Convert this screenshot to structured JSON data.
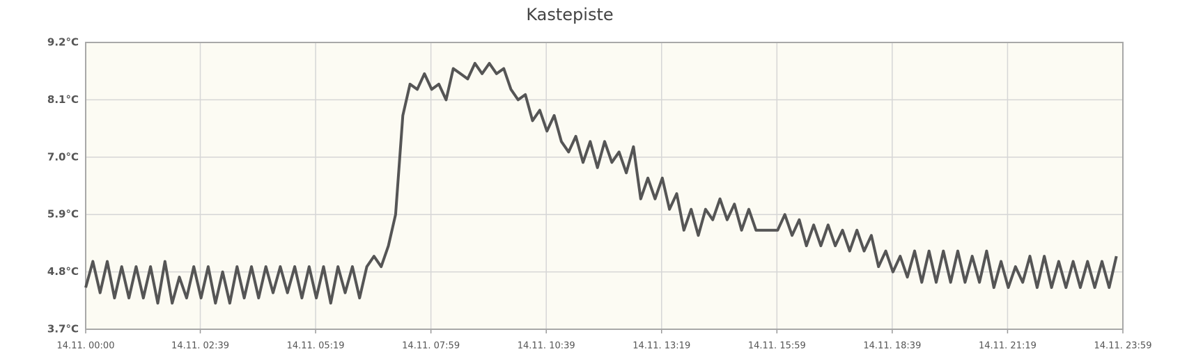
{
  "chart_data": {
    "type": "line",
    "title": "Kastepiste",
    "x": [
      0,
      10,
      20,
      30,
      40,
      50,
      60,
      70,
      80,
      90,
      100,
      110,
      120,
      130,
      140,
      150,
      160,
      170,
      180,
      190,
      200,
      210,
      220,
      230,
      240,
      250,
      260,
      270,
      280,
      290,
      300,
      310,
      320,
      330,
      340,
      350,
      360,
      370,
      380,
      390,
      400,
      410,
      420,
      430,
      440,
      450,
      460,
      470,
      480,
      490,
      500,
      510,
      520,
      530,
      540,
      550,
      560,
      570,
      580,
      590,
      600,
      610,
      620,
      630,
      640,
      650,
      660,
      670,
      680,
      690,
      700,
      710,
      720,
      730,
      740,
      750,
      760,
      770,
      780,
      790,
      800,
      810,
      820,
      830,
      840,
      850,
      860,
      870,
      880,
      890,
      900,
      910,
      920,
      930,
      940,
      950,
      960,
      970,
      980,
      990,
      1000,
      1010,
      1020,
      1030,
      1040,
      1050,
      1060,
      1070,
      1080,
      1090,
      1100,
      1110,
      1120,
      1130,
      1140,
      1150,
      1160,
      1170,
      1180,
      1190,
      1200,
      1210,
      1220,
      1230,
      1240,
      1250,
      1260,
      1270,
      1280,
      1290,
      1300,
      1310,
      1320,
      1330,
      1340,
      1350,
      1360,
      1370,
      1380,
      1390,
      1400,
      1410,
      1420,
      1430
    ],
    "series": [
      {
        "color": "#555555",
        "values": [
          4.5,
          5.0,
          4.4,
          5.0,
          4.3,
          4.9,
          4.3,
          4.9,
          4.3,
          4.9,
          4.2,
          5.0,
          4.2,
          4.7,
          4.3,
          4.9,
          4.3,
          4.9,
          4.2,
          4.8,
          4.2,
          4.9,
          4.3,
          4.9,
          4.3,
          4.9,
          4.4,
          4.9,
          4.4,
          4.9,
          4.3,
          4.9,
          4.3,
          4.9,
          4.2,
          4.9,
          4.4,
          4.9,
          4.3,
          4.9,
          5.1,
          4.9,
          5.3,
          5.9,
          7.8,
          8.4,
          8.3,
          8.6,
          8.3,
          8.4,
          8.1,
          8.7,
          8.6,
          8.5,
          8.8,
          8.6,
          8.8,
          8.6,
          8.7,
          8.3,
          8.1,
          8.2,
          7.7,
          7.9,
          7.5,
          7.8,
          7.3,
          7.1,
          7.4,
          6.9,
          7.3,
          6.8,
          7.3,
          6.9,
          7.1,
          6.7,
          7.2,
          6.2,
          6.6,
          6.2,
          6.6,
          6.0,
          6.3,
          5.6,
          6.0,
          5.5,
          6.0,
          5.8,
          6.2,
          5.8,
          6.1,
          5.6,
          6.0,
          5.6,
          5.6,
          5.6,
          5.6,
          5.9,
          5.5,
          5.8,
          5.3,
          5.7,
          5.3,
          5.7,
          5.3,
          5.6,
          5.2,
          5.6,
          5.2,
          5.5,
          4.9,
          5.2,
          4.8,
          5.1,
          4.7,
          5.2,
          4.6,
          5.2,
          4.6,
          5.2,
          4.6,
          5.2,
          4.6,
          5.1,
          4.6,
          5.2,
          4.5,
          5.0,
          4.5,
          4.9,
          4.6,
          5.1,
          4.5,
          5.1,
          4.5,
          5.0,
          4.5,
          5.0,
          4.5,
          5.0,
          4.5,
          5.0,
          4.5,
          5.1
        ]
      }
    ],
    "xlim": [
      0,
      1439
    ],
    "xticks": [
      {
        "value": 0,
        "label": "14.11. 00:00"
      },
      {
        "value": 159,
        "label": "14.11. 02:39"
      },
      {
        "value": 319,
        "label": "14.11. 05:19"
      },
      {
        "value": 479,
        "label": "14.11. 07:59"
      },
      {
        "value": 639,
        "label": "14.11. 10:39"
      },
      {
        "value": 799,
        "label": "14.11. 13:19"
      },
      {
        "value": 959,
        "label": "14.11. 15:59"
      },
      {
        "value": 1119,
        "label": "14.11. 18:39"
      },
      {
        "value": 1279,
        "label": "14.11. 21:19"
      },
      {
        "value": 1439,
        "label": "14.11. 23:59"
      }
    ],
    "ylim": [
      3.7,
      9.2
    ],
    "yticks": [
      {
        "value": 3.7,
        "label": "3.7°C"
      },
      {
        "value": 4.8,
        "label": "4.8°C"
      },
      {
        "value": 5.9,
        "label": "5.9°C"
      },
      {
        "value": 7.0,
        "label": "7.0°C"
      },
      {
        "value": 8.1,
        "label": "8.1°C"
      },
      {
        "value": 9.2,
        "label": "9.2°C"
      }
    ],
    "grid": true
  }
}
